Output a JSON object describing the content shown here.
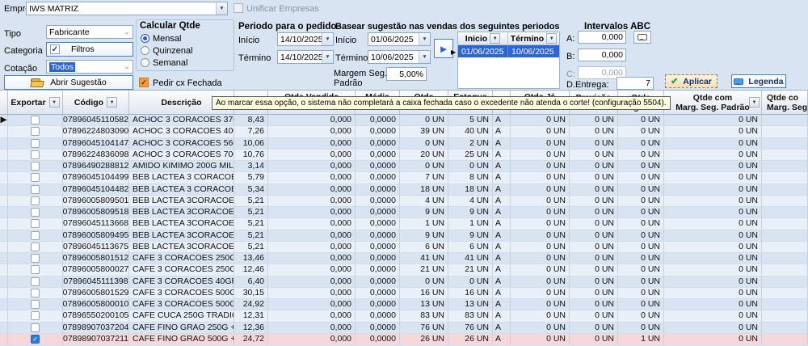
{
  "panel": {
    "empresa_label": "Empresa",
    "empresa_value": "IWS MATRIZ",
    "unificar_label": "Unificar Empresas",
    "tipo_label": "Tipo",
    "tipo_value": "Fabricante",
    "categoria_label": "Categoria",
    "filtros_label": "Filtros",
    "cotacao_label": "Cotação",
    "cotacao_value": "Todos",
    "abrir_sugestao_label": "Abrir Sugestão",
    "calcular": {
      "title": "Calcular Qtde",
      "options": [
        "Mensal",
        "Quinzenal",
        "Semanal"
      ],
      "selected": "Mensal"
    },
    "pedir_cx_label": "Pedir cx Fechada",
    "periodo_pedido": {
      "title": "Periodo para o pedido",
      "inicio_label": "Início",
      "inicio_value": "14/10/2025",
      "termino_label": "Término",
      "termino_value": "14/10/2025"
    },
    "basear": {
      "title": "Basear sugestão nas vendas dos seguintes periodos",
      "inicio_label": "Início",
      "inicio_value": "01/06/2025",
      "termino_label": "Término",
      "termino_value": "10/06/2025",
      "margem_label_1": "Margem Seg.",
      "margem_label_2": "Padrão",
      "margem_value": "5,00%",
      "grid_col1": "Inicio",
      "grid_col2": "Término",
      "grid_row": [
        "01/06/2025",
        "10/06/2025"
      ]
    },
    "abc": {
      "title": "Intervalos ABC",
      "a_label": "A:",
      "a_value": "0,000",
      "b_label": "B:",
      "b_value": "0,000",
      "c_label": "C:",
      "c_value": "0,000",
      "dentrega_label": "D.Entrega:",
      "dentrega_value": "7"
    },
    "aplicar_label": "Aplicar",
    "legenda_label": "Legenda"
  },
  "tooltip_text": "Ao marcar essa opção, o sistema não completará a caixa fechada caso o excedente não atenda o corte! (configuração 5504).",
  "colors": {
    "selection_blue": "#2a65d9",
    "row_alt_blue": "#e9f0fa",
    "selected_row_pink": "#f6d8da",
    "checkbox_orange": "#f49b33",
    "apply_check_green": "#22a03c"
  },
  "table": {
    "headers": {
      "exportar": "Exportar",
      "codigo": "Código",
      "descricao": "Descrição",
      "preco": "",
      "qtde_vendida": "Qtde Vendida",
      "media": "Média",
      "qtde": "Qtde",
      "estoque": "Estoque",
      "abc": "",
      "qtde_ja": "Qtde  Já",
      "previsao_1": "Previsão",
      "previsao_2": "Período",
      "sugerida_1": "Qtde",
      "sugerida_2": "Sugerida",
      "msp_1": "Qtde com",
      "msp_2": "Marg. Seg. Padrão",
      "msa_1": "Qtde co",
      "msa_2": "Marg. Seg. A"
    },
    "rows": [
      {
        "checked": false,
        "codigo": "07896045110582",
        "desc": "ACHOC 3 CORACOES 370G",
        "preco": "8,43",
        "vend": "0,000",
        "media": "0,0000",
        "qtde": "0 UN",
        "estoque": "5 UN",
        "abc": "A",
        "ja": "0 UN",
        "prev": "0 UN",
        "sug": "0 UN",
        "msp": "0 UN",
        "msa": ""
      },
      {
        "checked": false,
        "codigo": "07896224803090",
        "desc": "ACHOC 3 CORACOES 400G",
        "preco": "7,26",
        "vend": "0,000",
        "media": "0,0000",
        "qtde": "39 UN",
        "estoque": "40 UN",
        "abc": "A",
        "ja": "0 UN",
        "prev": "0 UN",
        "sug": "0 UN",
        "msp": "0 UN",
        "msa": ""
      },
      {
        "checked": false,
        "codigo": "07896045104147",
        "desc": "ACHOC 3 CORACOES 560G",
        "preco": "10,06",
        "vend": "0,000",
        "media": "0,0000",
        "qtde": "0 UN",
        "estoque": "2 UN",
        "abc": "A",
        "ja": "0 UN",
        "prev": "0 UN",
        "sug": "0 UN",
        "msp": "0 UN",
        "msa": ""
      },
      {
        "checked": false,
        "codigo": "07896224836098",
        "desc": "ACHOC 3 CORACOES 700G",
        "preco": "10,76",
        "vend": "0,000",
        "media": "0,0000",
        "qtde": "20 UN",
        "estoque": "25 UN",
        "abc": "A",
        "ja": "0 UN",
        "prev": "0 UN",
        "sug": "0 UN",
        "msp": "0 UN",
        "msa": ""
      },
      {
        "checked": false,
        "codigo": "07896490288812",
        "desc": "AMIDO KIMIMO 200G MILHO",
        "preco": "3,14",
        "vend": "0,000",
        "media": "0,0000",
        "qtde": "0 UN",
        "estoque": "0 UN",
        "abc": "A",
        "ja": "0 UN",
        "prev": "0 UN",
        "sug": "0 UN",
        "msp": "0 UN",
        "msa": ""
      },
      {
        "checked": false,
        "codigo": "07896045104499",
        "desc": "BEB LACTEA 3 CORACOES",
        "preco": "5,79",
        "vend": "0,000",
        "media": "0,0000",
        "qtde": "7 UN",
        "estoque": "8 UN",
        "abc": "A",
        "ja": "0 UN",
        "prev": "0 UN",
        "sug": "0 UN",
        "msp": "0 UN",
        "msa": ""
      },
      {
        "checked": false,
        "codigo": "07896045104482",
        "desc": "BEB LACTEA 3 CORACOES",
        "preco": "5,34",
        "vend": "0,000",
        "media": "0,0000",
        "qtde": "18 UN",
        "estoque": "18 UN",
        "abc": "A",
        "ja": "0 UN",
        "prev": "0 UN",
        "sug": "0 UN",
        "msp": "0 UN",
        "msa": ""
      },
      {
        "checked": false,
        "codigo": "07896005809501",
        "desc": "BEB LACTEA 3CORACOES",
        "preco": "5,21",
        "vend": "0,000",
        "media": "0,0000",
        "qtde": "4 UN",
        "estoque": "4 UN",
        "abc": "A",
        "ja": "0 UN",
        "prev": "0 UN",
        "sug": "0 UN",
        "msp": "0 UN",
        "msa": ""
      },
      {
        "checked": false,
        "codigo": "07896005809518",
        "desc": "BEB LACTEA 3CORACOES",
        "preco": "5,21",
        "vend": "0,000",
        "media": "0,0000",
        "qtde": "9 UN",
        "estoque": "9 UN",
        "abc": "A",
        "ja": "0 UN",
        "prev": "0 UN",
        "sug": "0 UN",
        "msp": "0 UN",
        "msa": ""
      },
      {
        "checked": false,
        "codigo": "07896045113668",
        "desc": "BEB LACTEA 3CORACOES",
        "preco": "5,21",
        "vend": "0,000",
        "media": "0,0000",
        "qtde": "1 UN",
        "estoque": "1 UN",
        "abc": "A",
        "ja": "0 UN",
        "prev": "0 UN",
        "sug": "0 UN",
        "msp": "0 UN",
        "msa": ""
      },
      {
        "checked": false,
        "codigo": "07896005809495",
        "desc": "BEB LACTEA 3CORACOES",
        "preco": "5,21",
        "vend": "0,000",
        "media": "0,0000",
        "qtde": "9 UN",
        "estoque": "9 UN",
        "abc": "A",
        "ja": "0 UN",
        "prev": "0 UN",
        "sug": "0 UN",
        "msp": "0 UN",
        "msa": ""
      },
      {
        "checked": false,
        "codigo": "07896045113675",
        "desc": "BEB LACTEA 3CORACOES",
        "preco": "5,21",
        "vend": "0,000",
        "media": "0,0000",
        "qtde": "6 UN",
        "estoque": "6 UN",
        "abc": "A",
        "ja": "0 UN",
        "prev": "0 UN",
        "sug": "0 UN",
        "msp": "0 UN",
        "msa": ""
      },
      {
        "checked": false,
        "codigo": "07896005801512",
        "desc": "CAFE 3 CORACOES 250G E",
        "preco": "13,46",
        "vend": "0,000",
        "media": "0,0000",
        "qtde": "41 UN",
        "estoque": "41 UN",
        "abc": "A",
        "ja": "0 UN",
        "prev": "0 UN",
        "sug": "0 UN",
        "msp": "0 UN",
        "msa": ""
      },
      {
        "checked": false,
        "codigo": "07896005800027",
        "desc": "CAFE 3 CORACOES 250G T",
        "preco": "12,46",
        "vend": "0,000",
        "media": "0,0000",
        "qtde": "21 UN",
        "estoque": "21 UN",
        "abc": "A",
        "ja": "0 UN",
        "prev": "0 UN",
        "sug": "0 UN",
        "msp": "0 UN",
        "msa": ""
      },
      {
        "checked": false,
        "codigo": "07896045111398",
        "desc": "CAFE 3 CORACOES 40GR S",
        "preco": "6,40",
        "vend": "0,000",
        "media": "0,0000",
        "qtde": "0 UN",
        "estoque": "0 UN",
        "abc": "A",
        "ja": "0 UN",
        "prev": "0 UN",
        "sug": "0 UN",
        "msp": "0 UN",
        "msa": ""
      },
      {
        "checked": false,
        "codigo": "07896005801529",
        "desc": "CAFE 3 CORACOES 500G E",
        "preco": "30,15",
        "vend": "0,000",
        "media": "0,0000",
        "qtde": "16 UN",
        "estoque": "16 UN",
        "abc": "A",
        "ja": "0 UN",
        "prev": "0 UN",
        "sug": "0 UN",
        "msp": "0 UN",
        "msa": ""
      },
      {
        "checked": false,
        "codigo": "07896005800010",
        "desc": "CAFE 3 CORACOES 500G T",
        "preco": "24,92",
        "vend": "0,000",
        "media": "0,0000",
        "qtde": "13 UN",
        "estoque": "13 UN",
        "abc": "A",
        "ja": "0 UN",
        "prev": "0 UN",
        "sug": "0 UN",
        "msp": "0 UN",
        "msa": ""
      },
      {
        "checked": false,
        "codigo": "07896550200105",
        "desc": "CAFE CUCA 250G TRADIC",
        "preco": "12,31",
        "vend": "0,000",
        "media": "0,0000",
        "qtde": "83 UN",
        "estoque": "83 UN",
        "abc": "A",
        "ja": "0 UN",
        "prev": "0 UN",
        "sug": "0 UN",
        "msp": "0 UN",
        "msa": ""
      },
      {
        "checked": false,
        "codigo": "07898907037204",
        "desc": "CAFE FINO GRAO 250G +F",
        "preco": "12,36",
        "vend": "0,000",
        "media": "0,0000",
        "qtde": "76 UN",
        "estoque": "76 UN",
        "abc": "A",
        "ja": "0 UN",
        "prev": "0 UN",
        "sug": "0 UN",
        "msp": "0 UN",
        "msa": ""
      },
      {
        "checked": true,
        "codigo": "07898907037211",
        "desc": "CAFE FINO GRAO 500G + F",
        "preco": "24,72",
        "vend": "0,000",
        "media": "0,0000",
        "qtde": "26 UN",
        "estoque": "26 UN",
        "abc": "A",
        "ja": "0 UN",
        "prev": "0 UN",
        "sug": "1 UN",
        "msp": "0 UN",
        "msa": ""
      }
    ]
  }
}
